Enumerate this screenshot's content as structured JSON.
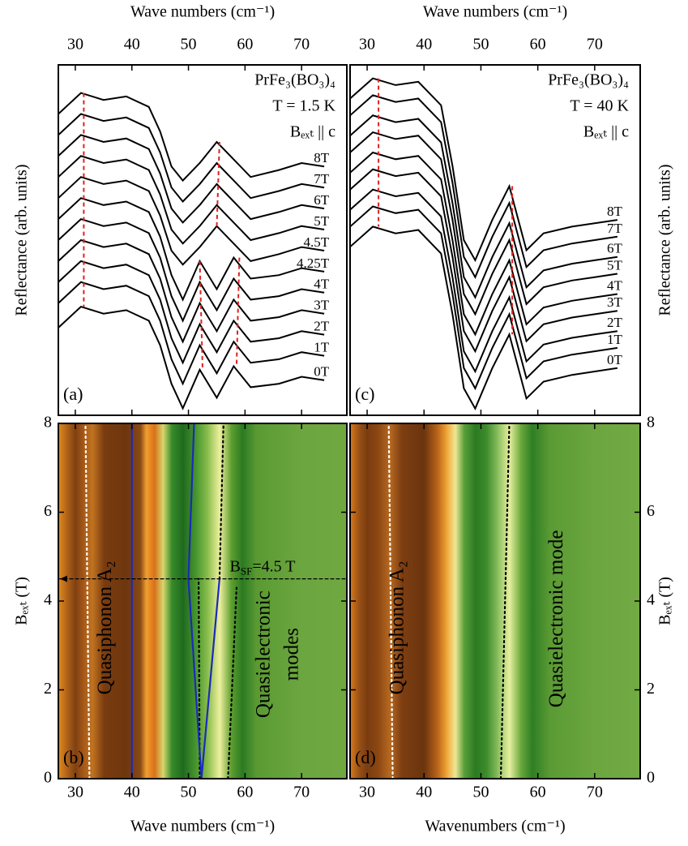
{
  "chart_data": [
    {
      "type": "line",
      "panel_label": "(a)",
      "x_label": "Wave numbers (cm⁻¹)",
      "y_label": "Reflectance (arb. units)",
      "annotations": [
        "PrFe₃(BO₃)₄",
        "T = 1.5 K",
        "Bₑₓₜ || c"
      ],
      "xlim": [
        27,
        78
      ],
      "xticks": [
        30,
        40,
        50,
        60,
        70
      ],
      "ylim": [
        0,
        100
      ],
      "x": [
        27,
        31,
        35,
        39,
        43,
        45,
        47,
        49,
        52,
        55,
        58,
        61,
        66,
        70,
        74
      ],
      "series": [
        {
          "name": "8T",
          "color": "#000000",
          "values": [
            86,
            92,
            90,
            91,
            88,
            81,
            71,
            67,
            72,
            78,
            73,
            68,
            70,
            72,
            71
          ]
        },
        {
          "name": "7T",
          "color": "#000000",
          "values": [
            80,
            86,
            84,
            85,
            82,
            75,
            65,
            61,
            66,
            72,
            67,
            62,
            64,
            66,
            65
          ]
        },
        {
          "name": "6T",
          "color": "#000000",
          "values": [
            74,
            80,
            78,
            79,
            76,
            69,
            59,
            55,
            60,
            66,
            61,
            56,
            58,
            60,
            59
          ]
        },
        {
          "name": "5T",
          "color": "#000000",
          "values": [
            68,
            74,
            72,
            73,
            70,
            63,
            53,
            49,
            54,
            60,
            55,
            50,
            52,
            54,
            53
          ]
        },
        {
          "name": "4.5T",
          "color": "#000000",
          "label_color": "#d62020",
          "values": [
            62,
            68,
            66,
            67,
            64,
            57,
            47,
            43,
            48,
            54,
            49,
            44,
            46,
            48,
            47
          ]
        },
        {
          "name": "4.25T",
          "color": "#000000",
          "values": [
            56,
            62,
            60,
            61,
            58,
            51,
            40,
            33,
            44,
            36,
            45,
            39,
            40,
            42,
            41
          ]
        },
        {
          "name": "4T",
          "color": "#000000",
          "values": [
            50,
            56,
            54,
            55,
            52,
            45,
            34,
            27,
            38,
            30,
            39,
            33,
            34,
            36,
            35
          ]
        },
        {
          "name": "3T",
          "color": "#000000",
          "values": [
            44,
            50,
            48,
            49,
            46,
            39,
            28,
            21,
            32,
            24,
            33,
            27,
            28,
            30,
            29
          ]
        },
        {
          "name": "2T",
          "color": "#000000",
          "values": [
            38,
            44,
            42,
            43,
            40,
            33,
            22,
            15,
            26,
            18,
            27,
            21,
            22,
            24,
            23
          ]
        },
        {
          "name": "1T",
          "color": "#000000",
          "values": [
            32,
            38,
            36,
            37,
            34,
            27,
            16,
            9,
            20,
            12,
            21,
            15,
            16,
            18,
            17
          ]
        },
        {
          "name": "0T",
          "color": "#000000",
          "values": [
            25,
            31,
            29,
            30,
            27,
            20,
            9,
            2,
            13,
            5,
            14,
            8,
            9,
            11,
            10
          ]
        }
      ],
      "guides": [
        {
          "color": "#e02020",
          "x": [
            31.5,
            31.5
          ],
          "y": [
            92,
            31
          ]
        },
        {
          "color": "#e02020",
          "x": [
            55.5,
            55
          ],
          "y": [
            78,
            54
          ]
        },
        {
          "color": "#e02020",
          "x": [
            52,
            52.5
          ],
          "y": [
            44,
            13
          ]
        },
        {
          "color": "#e02020",
          "x": [
            59,
            58.5
          ],
          "y": [
            45,
            14
          ]
        }
      ]
    },
    {
      "type": "heatmap",
      "panel_label": "(b)",
      "x_label": "Wave numbers (cm⁻¹)",
      "y_label": "Bₑₓₜ (T)",
      "xlim": [
        27,
        78
      ],
      "xticks": [
        30,
        40,
        50,
        60,
        70
      ],
      "ylim": [
        0,
        8
      ],
      "yticks": [
        0,
        2,
        4,
        6,
        8
      ],
      "bands": [
        {
          "x": 27,
          "color": "#e08a1e"
        },
        {
          "x": 28.5,
          "color": "#b0621a"
        },
        {
          "x": 30,
          "color": "#7e4012"
        },
        {
          "x": 31.5,
          "color": "#a85a18"
        },
        {
          "x": 33,
          "color": "#c27420"
        },
        {
          "x": 35,
          "color": "#7a3c10"
        },
        {
          "x": 39,
          "color": "#6e360e"
        },
        {
          "x": 41.5,
          "color": "#8a4a14"
        },
        {
          "x": 42.5,
          "color": "#f0a030"
        },
        {
          "x": 44,
          "color": "#d87018"
        },
        {
          "x": 45.5,
          "color": "#d8d870"
        },
        {
          "x": 47,
          "color": "#3a8c2a"
        },
        {
          "x": 49,
          "color": "#1e6a1e"
        },
        {
          "x": 51.5,
          "color": "#4c9a30"
        },
        {
          "x": 53.5,
          "color": "#90c050"
        },
        {
          "x": 55.5,
          "color": "#f0f0a0"
        },
        {
          "x": 57.5,
          "color": "#60a030"
        },
        {
          "x": 59.5,
          "color": "#2a7a22"
        },
        {
          "x": 62,
          "color": "#5a9a32"
        },
        {
          "x": 70,
          "color": "#6ca640"
        },
        {
          "x": 78,
          "color": "#70a840"
        }
      ],
      "lines": [
        {
          "color": "#ffffff",
          "style": "dotted",
          "x": [
            32.5,
            31.8
          ],
          "y": [
            0,
            8
          ]
        },
        {
          "color": "#000000",
          "style": "dotted",
          "x": [
            52,
            51.8
          ],
          "y": [
            0,
            4.5
          ]
        },
        {
          "color": "#000000",
          "style": "dotted",
          "x": [
            57,
            58.5
          ],
          "y": [
            0,
            4.3
          ]
        },
        {
          "color": "#000000",
          "style": "dotted",
          "x": [
            55.5,
            56.2
          ],
          "y": [
            4.5,
            8
          ]
        },
        {
          "color": "#1a2bb8",
          "style": "solid",
          "x": [
            40,
            40
          ],
          "y": [
            0,
            8
          ]
        },
        {
          "color": "#1a2bb8",
          "style": "solid",
          "x": [
            52.3,
            50,
            51
          ],
          "y": [
            0,
            4.5,
            8
          ]
        },
        {
          "color": "#1a2bb8",
          "style": "solid",
          "x": [
            52.3,
            55.5
          ],
          "y": [
            0,
            4.5
          ]
        },
        {
          "color": "#000000",
          "style": "dashed",
          "x": [
            27,
            78
          ],
          "y": [
            4.5,
            4.5
          ]
        }
      ],
      "texts": [
        "Quasiphonon A₂",
        "Quasielectronic",
        "modes"
      ],
      "annotation": [
        "B",
        "SF",
        "=4.5 T"
      ]
    },
    {
      "type": "line",
      "panel_label": "(c)",
      "x_label": "Wave numbers (cm⁻¹)",
      "y_label": "Reflectance (arb. units)",
      "annotations": [
        "PrFe₃(BO₃)₄",
        "T = 40 K",
        "Bₑₓₜ || c"
      ],
      "xlim": [
        27,
        78
      ],
      "xticks": [
        30,
        40,
        50,
        60,
        70
      ],
      "ylim": [
        0,
        104
      ],
      "x": [
        27,
        31,
        35,
        39,
        43,
        45,
        47,
        49,
        52,
        55,
        58,
        61,
        66,
        70,
        74
      ],
      "series": [
        {
          "name": "8T",
          "color": "#000000",
          "values": [
            94,
            100,
            98,
            99,
            92,
            74,
            52,
            46,
            58,
            68,
            49,
            54,
            56,
            57,
            58
          ]
        },
        {
          "name": "7T",
          "color": "#000000",
          "values": [
            89,
            95,
            93,
            94,
            87,
            69,
            47,
            41,
            53,
            63,
            44,
            49,
            51,
            52,
            53
          ]
        },
        {
          "name": "6T",
          "color": "#000000",
          "values": [
            83,
            89,
            87,
            88,
            81,
            63,
            41,
            35,
            47,
            57,
            38,
            43,
            45,
            46,
            47
          ]
        },
        {
          "name": "5T",
          "color": "#000000",
          "values": [
            78,
            84,
            82,
            83,
            76,
            58,
            36,
            30,
            42,
            52,
            33,
            38,
            40,
            41,
            42
          ]
        },
        {
          "name": "4T",
          "color": "#000000",
          "values": [
            72,
            78,
            76,
            77,
            70,
            52,
            30,
            24,
            36,
            46,
            27,
            32,
            34,
            35,
            36
          ]
        },
        {
          "name": "3T",
          "color": "#000000",
          "values": [
            67,
            73,
            71,
            72,
            65,
            47,
            25,
            19,
            31,
            41,
            22,
            27,
            29,
            30,
            31
          ]
        },
        {
          "name": "2T",
          "color": "#000000",
          "values": [
            61,
            67,
            65,
            66,
            59,
            41,
            19,
            13,
            25,
            35,
            16,
            21,
            23,
            24,
            25
          ]
        },
        {
          "name": "1T",
          "color": "#000000",
          "values": [
            56,
            62,
            60,
            61,
            54,
            36,
            14,
            8,
            20,
            30,
            11,
            16,
            18,
            19,
            20
          ]
        },
        {
          "name": "0T",
          "color": "#000000",
          "values": [
            50,
            56,
            54,
            55,
            48,
            30,
            8,
            2,
            14,
            24,
            5,
            10,
            12,
            13,
            14
          ]
        }
      ],
      "guides": [
        {
          "color": "#e02020",
          "x": [
            32,
            32
          ],
          "y": [
            100,
            56
          ]
        },
        {
          "color": "#e02020",
          "x": [
            55.5,
            55.5
          ],
          "y": [
            68,
            24
          ]
        }
      ]
    },
    {
      "type": "heatmap",
      "panel_label": "(d)",
      "x_label": "Wavenumbers (cm⁻¹)",
      "y_label": "Bₑₓₜ (T)",
      "xlim": [
        27,
        78
      ],
      "xticks": [
        30,
        40,
        50,
        60,
        70
      ],
      "ylim": [
        0,
        8
      ],
      "yticks": [
        0,
        2,
        4,
        6,
        8
      ],
      "bands": [
        {
          "x": 27,
          "color": "#d87a1c"
        },
        {
          "x": 28.5,
          "color": "#9a5216"
        },
        {
          "x": 30,
          "color": "#7a3c10"
        },
        {
          "x": 32,
          "color": "#8e4814"
        },
        {
          "x": 34,
          "color": "#b86a20"
        },
        {
          "x": 36,
          "color": "#7e3e12"
        },
        {
          "x": 40,
          "color": "#6a340e"
        },
        {
          "x": 42.5,
          "color": "#c0681a"
        },
        {
          "x": 44,
          "color": "#f0a838"
        },
        {
          "x": 45.5,
          "color": "#f0e898"
        },
        {
          "x": 47,
          "color": "#5aa03a"
        },
        {
          "x": 49,
          "color": "#2a7a22"
        },
        {
          "x": 51,
          "color": "#3e8c2c"
        },
        {
          "x": 53,
          "color": "#8cc060"
        },
        {
          "x": 55,
          "color": "#e8f0a0"
        },
        {
          "x": 57,
          "color": "#6aa83c"
        },
        {
          "x": 59,
          "color": "#2e7e24"
        },
        {
          "x": 62,
          "color": "#5a9a34"
        },
        {
          "x": 70,
          "color": "#6ca640"
        },
        {
          "x": 78,
          "color": "#72aa44"
        }
      ],
      "lines": [
        {
          "color": "#ffffff",
          "style": "dotted",
          "x": [
            34.5,
            33.8
          ],
          "y": [
            0,
            8
          ]
        },
        {
          "color": "#000000",
          "style": "dotted",
          "x": [
            53.5,
            55
          ],
          "y": [
            0,
            8
          ]
        }
      ],
      "texts": [
        "Quasiphonon A₂",
        "Quasielectronic mode"
      ]
    }
  ]
}
